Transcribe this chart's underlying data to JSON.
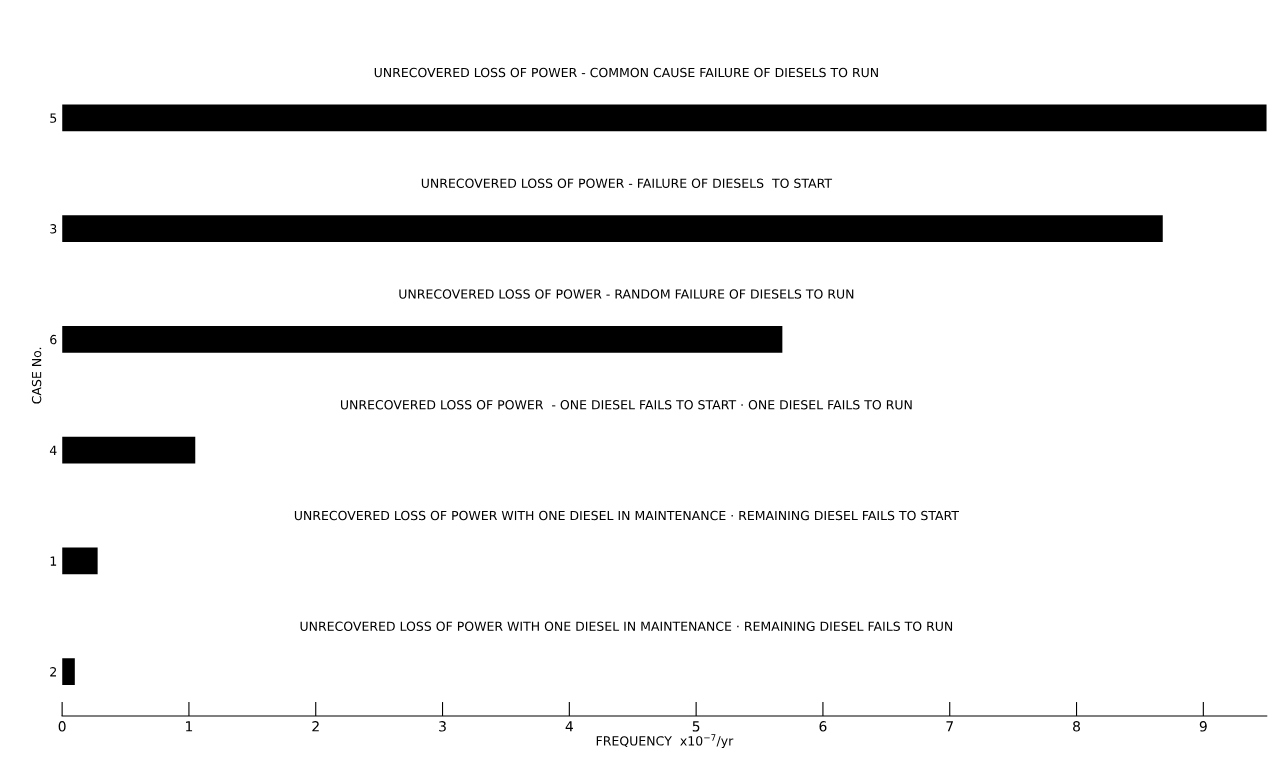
{
  "chart_data": {
    "type": "bar",
    "orientation": "horizontal",
    "categories": [
      "5",
      "3",
      "6",
      "4",
      "1",
      "2"
    ],
    "values": [
      9.5,
      8.68,
      5.68,
      1.05,
      0.28,
      0.1
    ],
    "color": "#000000",
    "xlim": [
      0,
      9.5
    ],
    "xticks": [
      0,
      1,
      2,
      3,
      4,
      5,
      6,
      7,
      8,
      9
    ],
    "xlabel": "FREQUENCY  x10$^{−7}$/yr",
    "ylabel": "CASE No.",
    "annotations": [
      "UNRECOVERED LOSS OF POWER - COMMON CAUSE FAILURE OF DIESELS TO RUN",
      "UNRECOVERED LOSS OF POWER - FAILURE OF DIESELS  TO START",
      "UNRECOVERED LOSS OF POWER - RANDOM FAILURE OF DIESELS TO RUN",
      "UNRECOVERED LOSS OF POWER  - ONE DIESEL FAILS TO START · ONE DIESEL FAILS TO RUN",
      "UNRECOVERED LOSS OF POWER WITH ONE DIESEL IN MAINTENANCE · REMAINING DIESEL FAILS TO START",
      "UNRECOVERED LOSS OF POWER WITH ONE DIESEL IN MAINTENANCE · REMAINING DIESEL FAILS TO RUN"
    ],
    "grid": false,
    "legend": false
  }
}
